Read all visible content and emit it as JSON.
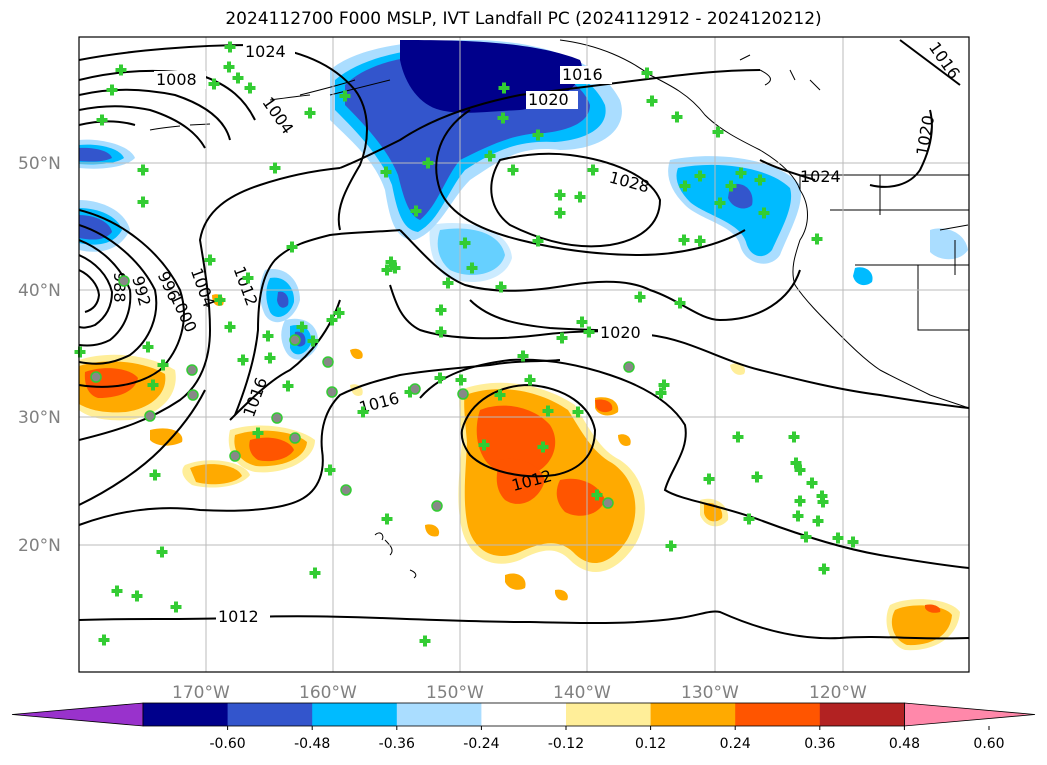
{
  "title": "2024112700 F000 MSLP, IVT Landfall PC (2024112912 - 2024120212)",
  "lat_labels": [
    "50°N",
    "40°N",
    "30°N",
    "20°N"
  ],
  "lon_labels": [
    "170°W",
    "160°W",
    "150°W",
    "140°W",
    "130°W",
    "120°W"
  ],
  "contour_labels": [
    "1024",
    "1008",
    "1004",
    "1016",
    "1020",
    "1028",
    "1024",
    "988",
    "992",
    "996",
    "1000",
    "1004",
    "1012",
    "1016",
    "1016",
    "1020",
    "1012",
    "1012",
    "1016",
    "1020"
  ],
  "colorbar": {
    "colors": [
      "#9932cc",
      "#00008b",
      "#3355cc",
      "#00bbff",
      "#aaddff",
      "#ffffff",
      "#ffee99",
      "#ffaa00",
      "#ff5500",
      "#b22222",
      "#ff88aa"
    ],
    "ticks": [
      "-0.60",
      "-0.48",
      "-0.36",
      "-0.24",
      "-0.12",
      "0.12",
      "0.24",
      "0.36",
      "0.48",
      "0.60"
    ]
  },
  "legend_colors": {
    "station_marker": "#33cc33",
    "grid": "#bbbbbb"
  }
}
